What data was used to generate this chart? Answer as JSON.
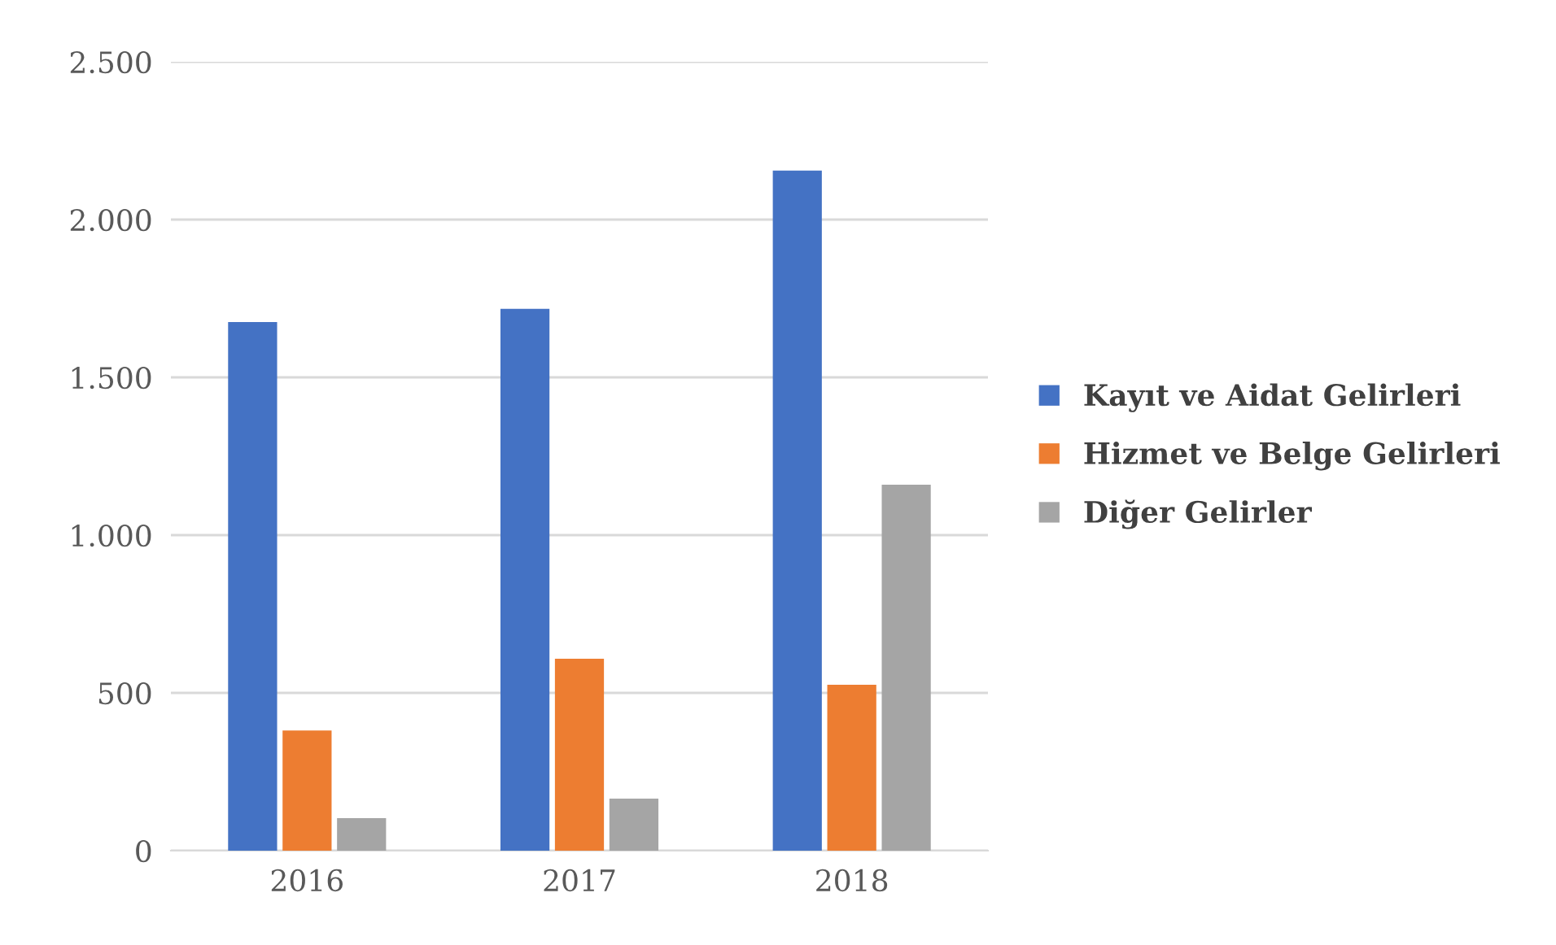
{
  "chart_data": {
    "type": "bar",
    "categories": [
      "2016",
      "2017",
      "2018"
    ],
    "series": [
      {
        "name": "Kayıt ve Aidat Gelirleri",
        "color": "#4472c4",
        "values": [
          1675,
          1717,
          2155
        ]
      },
      {
        "name": "Hizmet ve Belge Gelirleri",
        "color": "#ed7d31",
        "values": [
          381,
          608,
          526
        ]
      },
      {
        "name": "Diğer Gelirler",
        "color": "#a5a5a5",
        "values": [
          103,
          165,
          1160
        ]
      }
    ],
    "ylim": [
      0,
      2500
    ],
    "yticks": [
      {
        "value": 0,
        "label": "0"
      },
      {
        "value": 500,
        "label": "500"
      },
      {
        "value": 1000,
        "label": "1.000"
      },
      {
        "value": 1500,
        "label": "1.500"
      },
      {
        "value": 2000,
        "label": "2.000"
      },
      {
        "value": 2500,
        "label": "2.500"
      }
    ],
    "grid": "y",
    "legend": "right"
  }
}
